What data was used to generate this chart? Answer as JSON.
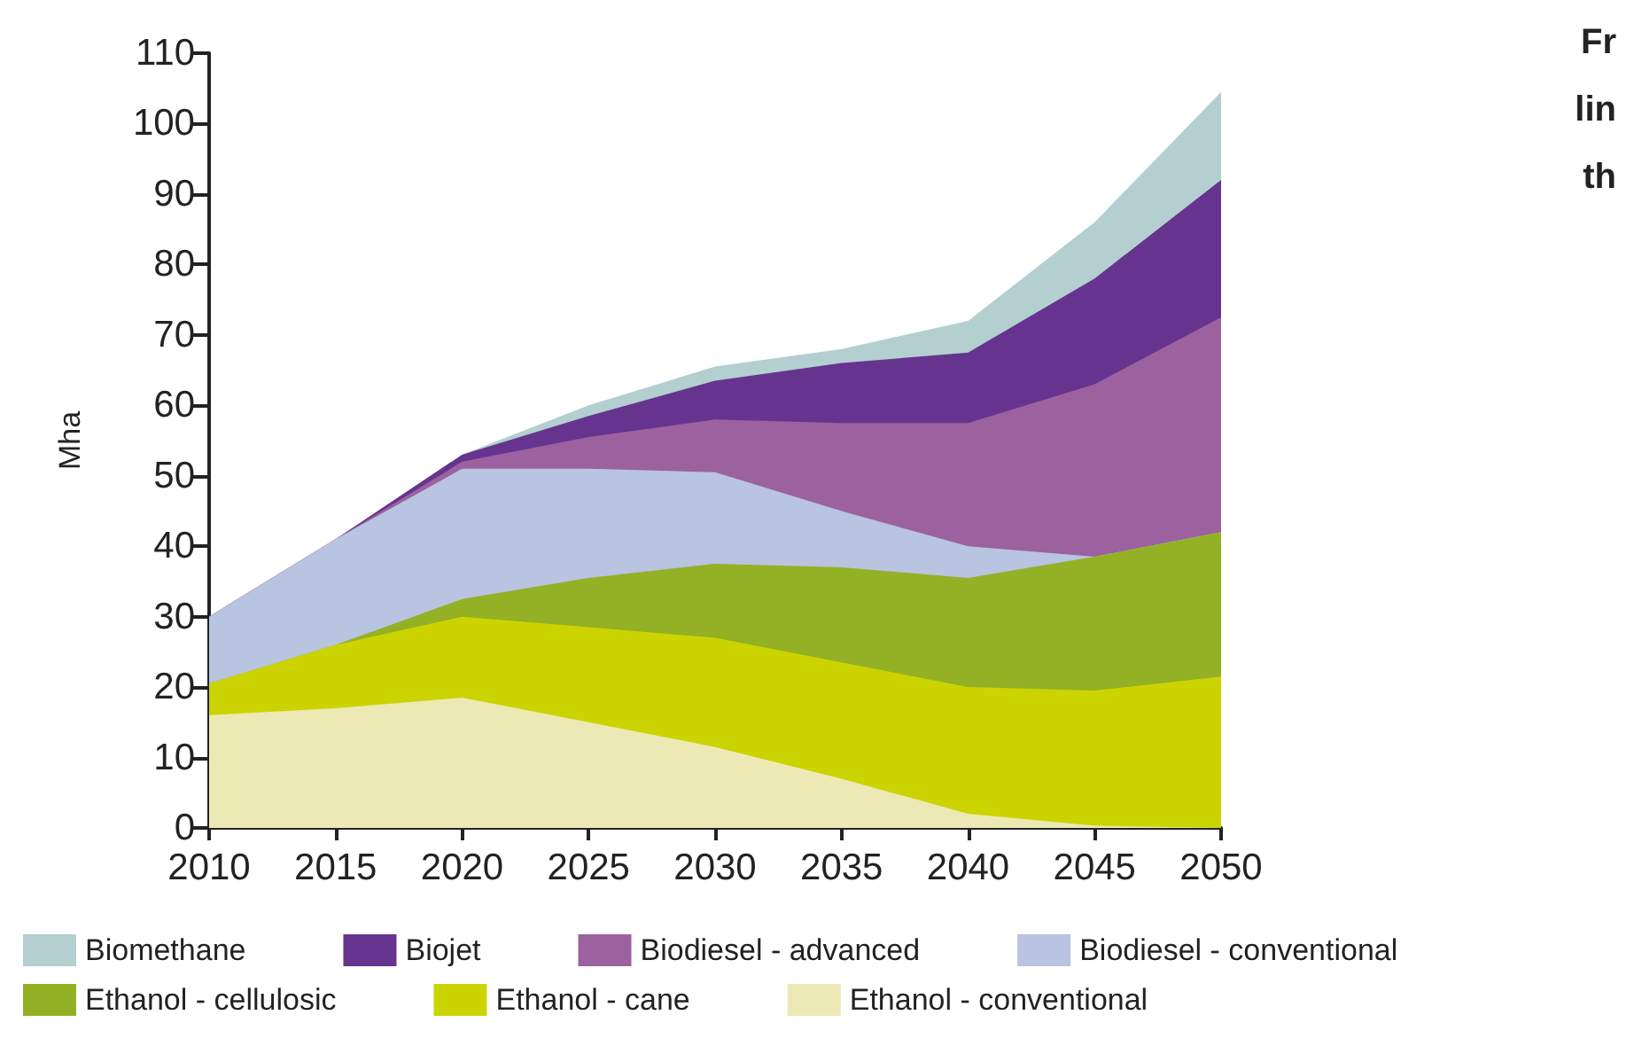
{
  "chart_data": {
    "type": "area",
    "stacked": true,
    "ylabel": "Mha",
    "x": [
      2010,
      2015,
      2020,
      2025,
      2030,
      2035,
      2040,
      2045,
      2050
    ],
    "xlim": [
      2010,
      2050
    ],
    "xticks": [
      2010,
      2015,
      2020,
      2025,
      2030,
      2035,
      2040,
      2045,
      2050
    ],
    "ylim": [
      0,
      110
    ],
    "yticks": [
      0,
      10,
      20,
      30,
      40,
      50,
      60,
      70,
      80,
      90,
      100,
      110
    ],
    "grid": false,
    "legend": "bottom",
    "series": [
      {
        "name": "Ethanol - conventional",
        "color": "#ece9b5",
        "values": [
          16,
          17,
          18.5,
          15,
          11.5,
          7,
          2,
          0.3,
          0
        ]
      },
      {
        "name": "Ethanol - cane",
        "color": "#cbd400",
        "values": [
          4.5,
          9,
          11.5,
          13.5,
          15.5,
          16.5,
          18,
          19.2,
          21.5
        ]
      },
      {
        "name": "Ethanol - cellulosic",
        "color": "#94b025",
        "values": [
          0,
          0,
          2.5,
          7,
          10.5,
          13.5,
          15.5,
          19,
          20.5
        ]
      },
      {
        "name": "Biodiesel - conventional",
        "color": "#b8c4e0",
        "values": [
          9.5,
          15,
          18.5,
          15.5,
          13,
          8,
          4.5,
          0,
          0
        ]
      },
      {
        "name": "Biodiesel - advanced",
        "color": "#9b629f",
        "values": [
          0,
          0,
          1,
          4.5,
          7.5,
          12.5,
          17.5,
          24.5,
          30.5
        ]
      },
      {
        "name": "Biojet",
        "color": "#66348f",
        "values": [
          0,
          0,
          1,
          3,
          5.5,
          8.5,
          10,
          15,
          19.5
        ]
      },
      {
        "name": "Biomethane",
        "color": "#b3cfcf",
        "values": [
          0,
          0,
          0,
          1.5,
          2,
          2,
          4.5,
          8,
          12.5
        ]
      }
    ],
    "annotations": [
      "Fr",
      "lin",
      "th"
    ]
  }
}
